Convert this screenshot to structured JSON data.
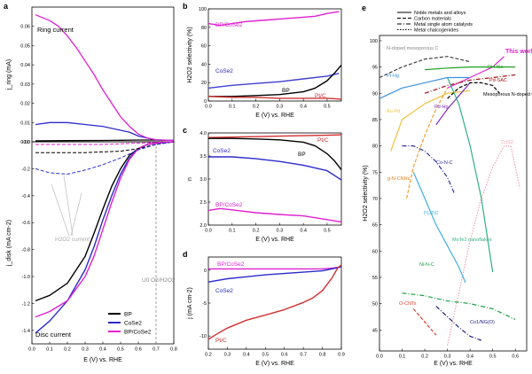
{
  "chart_data": [
    {
      "panel": "a",
      "type": "line",
      "title": "a",
      "top": {
        "ylabel": "j_ring (mA)",
        "annotation": "Ring current",
        "xlim": [
          0,
          0.8
        ],
        "ylim": [
          0,
          0.07
        ],
        "yticks": [
          "0.00",
          "0.01",
          "0.02",
          "0.03",
          "0.04",
          "0.05",
          "0.06"
        ],
        "series": [
          {
            "name": "BP",
            "color": "#000000",
            "style": "solid",
            "x": [
              0.02,
              0.2,
              0.4,
              0.5,
              0.6,
              0.68,
              0.75,
              0.8
            ],
            "y": [
              0.0005,
              0.0006,
              0.0007,
              0.0008,
              0.0009,
              0.0009,
              0.0008,
              0.0007
            ]
          },
          {
            "name": "CoSe2",
            "color": "#2b2bcc",
            "style": "solid",
            "x": [
              0.02,
              0.1,
              0.2,
              0.3,
              0.4,
              0.5,
              0.55,
              0.6,
              0.65,
              0.7,
              0.8
            ],
            "y": [
              0.009,
              0.01,
              0.01,
              0.009,
              0.008,
              0.006,
              0.005,
              0.003,
              0.002,
              0.001,
              0.0007
            ]
          },
          {
            "name": "BP/CoSe2",
            "color": "#e020d0",
            "style": "solid",
            "x": [
              0.02,
              0.1,
              0.15,
              0.2,
              0.25,
              0.3,
              0.35,
              0.4,
              0.45,
              0.5,
              0.55,
              0.6,
              0.65,
              0.7,
              0.8
            ],
            "y": [
              0.066,
              0.063,
              0.06,
              0.055,
              0.049,
              0.042,
              0.035,
              0.027,
              0.02,
              0.013,
              0.008,
              0.004,
              0.002,
              0.001,
              0.0007
            ]
          }
        ]
      },
      "bottom": {
        "ylabel": "j_disk (mA cm-2)",
        "xlabel": "E (V) vs. RHE",
        "annotation": "Disc current",
        "annotation2": "H2O2 current",
        "annotation3": "U0 O2/H2O2",
        "xlim": [
          0,
          0.8
        ],
        "ylim": [
          -1.5,
          0
        ],
        "xticks": [
          "0.0",
          "0.1",
          "0.2",
          "0.3",
          "0.4",
          "0.5",
          "0.6",
          "0.7",
          "0.8"
        ],
        "yticks": [
          "-0.0",
          "-0.2",
          "-0.4",
          "-0.6",
          "-0.8",
          "-1.0",
          "-1.2",
          "-1.4"
        ],
        "series": [
          {
            "name": "BP",
            "color": "#000000",
            "style": "solid",
            "x": [
              0.02,
              0.1,
              0.2,
              0.3,
              0.35,
              0.4,
              0.45,
              0.5,
              0.55,
              0.6,
              0.65,
              0.7,
              0.8
            ],
            "y": [
              -1.18,
              -1.14,
              -1.05,
              -0.85,
              -0.68,
              -0.5,
              -0.33,
              -0.2,
              -0.1,
              -0.05,
              -0.02,
              -0.01,
              0.0
            ]
          },
          {
            "name": "CoSe2",
            "color": "#2b2bcc",
            "style": "solid",
            "x": [
              0.02,
              0.1,
              0.2,
              0.3,
              0.35,
              0.4,
              0.45,
              0.5,
              0.55,
              0.6,
              0.65,
              0.7,
              0.8
            ],
            "y": [
              -1.42,
              -1.33,
              -1.18,
              -0.95,
              -0.78,
              -0.58,
              -0.4,
              -0.24,
              -0.12,
              -0.05,
              -0.02,
              -0.01,
              0.0
            ]
          },
          {
            "name": "BP/CoSe2",
            "color": "#e020d0",
            "style": "solid",
            "x": [
              0.02,
              0.1,
              0.2,
              0.3,
              0.35,
              0.4,
              0.45,
              0.5,
              0.55,
              0.6,
              0.65,
              0.7,
              0.8
            ],
            "y": [
              -1.3,
              -1.26,
              -1.18,
              -1.0,
              -0.85,
              -0.65,
              -0.45,
              -0.27,
              -0.13,
              -0.05,
              -0.02,
              -0.01,
              0.0
            ]
          },
          {
            "name": "BP H2O2",
            "color": "#000000",
            "style": "dashed",
            "x": [
              0.02,
              0.3,
              0.5,
              0.6,
              0.7,
              0.8
            ],
            "y": [
              -0.08,
              -0.08,
              -0.07,
              -0.05,
              -0.02,
              0.0
            ]
          },
          {
            "name": "CoSe2 H2O2",
            "color": "#2b2bcc",
            "style": "dashed",
            "x": [
              0.02,
              0.1,
              0.2,
              0.3,
              0.4,
              0.5,
              0.6,
              0.7,
              0.8
            ],
            "y": [
              -0.2,
              -0.23,
              -0.24,
              -0.21,
              -0.17,
              -0.12,
              -0.06,
              -0.02,
              0.0
            ]
          },
          {
            "name": "BP/CoSe2 H2O2",
            "color": "#e020d0",
            "style": "dashed",
            "x": [
              0.02,
              0.2,
              0.4,
              0.6,
              0.8
            ],
            "y": [
              -0.02,
              -0.02,
              -0.02,
              -0.01,
              0.0
            ]
          }
        ],
        "legend": [
          {
            "label": "BP",
            "color": "#000000"
          },
          {
            "label": "CoSe2",
            "color": "#2b2bcc"
          },
          {
            "label": "BP/CoSe2",
            "color": "#e020d0"
          }
        ],
        "legend_position": "bottom-right"
      }
    },
    {
      "panel": "b",
      "type": "line",
      "title": "b",
      "ylabel": "H2O2 selectivity (%)",
      "xlabel": "E (V) vs. RHE",
      "xlim": [
        0,
        0.56
      ],
      "ylim": [
        0,
        100
      ],
      "xticks": [
        "0.0",
        "0.1",
        "0.2",
        "0.3",
        "0.4",
        "0.5"
      ],
      "yticks": [
        "0",
        "20",
        "40",
        "60",
        "80",
        "100"
      ],
      "series": [
        {
          "name": "BP/CoSe2",
          "color": "#e020d0",
          "x": [
            0.0,
            0.05,
            0.1,
            0.15,
            0.2,
            0.25,
            0.3,
            0.35,
            0.4,
            0.45,
            0.5,
            0.55
          ],
          "y": [
            84,
            82,
            84,
            86,
            87,
            88,
            89,
            90,
            91,
            92,
            95,
            97
          ]
        },
        {
          "name": "CoSe2",
          "color": "#4040d0",
          "x": [
            0.0,
            0.1,
            0.2,
            0.3,
            0.4,
            0.5,
            0.55
          ],
          "y": [
            14,
            17,
            19,
            21,
            24,
            27,
            30
          ]
        },
        {
          "name": "BP",
          "color": "#000000",
          "x": [
            0.0,
            0.1,
            0.2,
            0.3,
            0.4,
            0.45,
            0.5,
            0.53,
            0.56
          ],
          "y": [
            5,
            5,
            6,
            7,
            10,
            14,
            22,
            30,
            39
          ]
        },
        {
          "name": "Pt/C",
          "color": "#d03030",
          "x": [
            0.0,
            0.1,
            0.2,
            0.3,
            0.4,
            0.5,
            0.56
          ],
          "y": [
            5,
            4,
            4,
            3,
            3,
            3,
            2
          ]
        }
      ],
      "labels": [
        "BP/CoSe2",
        "CoSe2",
        "BP",
        "Pt/C"
      ]
    },
    {
      "panel": "c",
      "type": "line",
      "title": "c",
      "ylabel": "n",
      "xlabel": "E (V) vs. RHE",
      "xlim": [
        0,
        0.56
      ],
      "ylim": [
        2.0,
        4.0
      ],
      "xticks": [
        "0.0",
        "0.1",
        "0.2",
        "0.3",
        "0.4",
        "0.5"
      ],
      "yticks": [
        "2.0",
        "2.5",
        "3.0",
        "3.5",
        "4.0"
      ],
      "series": [
        {
          "name": "Pt/C",
          "color": "#d03030",
          "x": [
            0.0,
            0.1,
            0.2,
            0.3,
            0.4,
            0.5,
            0.56
          ],
          "y": [
            3.9,
            3.91,
            3.92,
            3.93,
            3.94,
            3.95,
            3.96
          ]
        },
        {
          "name": "BP",
          "color": "#000000",
          "x": [
            0.0,
            0.1,
            0.2,
            0.3,
            0.4,
            0.45,
            0.5,
            0.53,
            0.56
          ],
          "y": [
            3.88,
            3.88,
            3.87,
            3.85,
            3.8,
            3.72,
            3.55,
            3.4,
            3.2
          ]
        },
        {
          "name": "CoSe2",
          "color": "#2b2bcc",
          "x": [
            0.0,
            0.1,
            0.2,
            0.3,
            0.4,
            0.5,
            0.56
          ],
          "y": [
            3.48,
            3.48,
            3.44,
            3.38,
            3.3,
            3.18,
            2.98
          ]
        },
        {
          "name": "BP/CoSe2",
          "color": "#e020d0",
          "x": [
            0.0,
            0.05,
            0.1,
            0.2,
            0.3,
            0.4,
            0.5,
            0.56
          ],
          "y": [
            2.32,
            2.36,
            2.33,
            2.27,
            2.23,
            2.2,
            2.12,
            2.07
          ]
        }
      ],
      "labels": [
        "Pt/C",
        "CoSe2",
        "BP",
        "BP/CoSe2"
      ]
    },
    {
      "panel": "d",
      "type": "line",
      "title": "d",
      "ylabel": "j (mA cm-2)",
      "xlabel": "E (V) vs. RHE",
      "xlim": [
        0.2,
        0.9
      ],
      "ylim": [
        -12,
        2
      ],
      "xticks": [
        "0.2",
        "0.3",
        "0.4",
        "0.5",
        "0.6",
        "0.7",
        "0.8",
        "0.9"
      ],
      "yticks": [
        "0",
        "-5",
        "-10"
      ],
      "series": [
        {
          "name": "BP/CoSe2",
          "color": "#e020d0",
          "x": [
            0.2,
            0.3,
            0.4,
            0.5,
            0.6,
            0.7,
            0.8,
            0.85,
            0.9
          ],
          "y": [
            0.2,
            0.2,
            0.2,
            0.2,
            0.2,
            0.2,
            0.2,
            0.3,
            0.5
          ]
        },
        {
          "name": "CoSe2",
          "color": "#2b2bcc",
          "x": [
            0.2,
            0.3,
            0.4,
            0.5,
            0.6,
            0.7,
            0.8,
            0.85,
            0.9
          ],
          "y": [
            -1.8,
            -1.3,
            -1.0,
            -0.7,
            -0.5,
            -0.3,
            -0.1,
            0.2,
            0.5
          ]
        },
        {
          "name": "Pt/C",
          "color": "#d03030",
          "x": [
            0.2,
            0.25,
            0.3,
            0.4,
            0.5,
            0.6,
            0.7,
            0.75,
            0.8,
            0.85,
            0.88,
            0.9
          ],
          "y": [
            -10.5,
            -9.6,
            -8.8,
            -7.6,
            -6.8,
            -6.0,
            -4.9,
            -4.2,
            -3.1,
            -1.2,
            0.3,
            0.8
          ]
        }
      ],
      "labels": [
        "BP/CoSe2",
        "CoSe2",
        "Pt/C"
      ]
    },
    {
      "panel": "e",
      "type": "line",
      "title": "e",
      "ylabel": "H2O2 selectivity (%)",
      "xlabel": "E (V) vs. RHE",
      "xlim": [
        0,
        0.65
      ],
      "ylim": [
        41,
        101
      ],
      "xticks": [
        "0.0",
        "0.1",
        "0.2",
        "0.3",
        "0.4",
        "0.5",
        "0.6"
      ],
      "yticks": [
        "45",
        "50",
        "55",
        "60",
        "65",
        "70",
        "75",
        "80",
        "85",
        "90",
        "95",
        "100"
      ],
      "legend": [
        {
          "label": "Noble metals and alloys",
          "style": "solid"
        },
        {
          "label": "Carbon materials",
          "style": "dashed"
        },
        {
          "label": "Metal single atom catalysts",
          "style": "dashdot"
        },
        {
          "label": "Metal chalcogenides",
          "style": "dotted"
        }
      ],
      "series": [
        {
          "name": "This work",
          "color": "#e020d0",
          "style": "solid",
          "x": [
            0.3,
            0.35,
            0.4,
            0.45,
            0.5,
            0.55
          ],
          "y": [
            91,
            92,
            93,
            94,
            95,
            97
          ]
        },
        {
          "name": "Pt-HSc",
          "color": "#20a020",
          "style": "solid",
          "x": [
            0.2,
            0.3,
            0.4,
            0.5,
            0.6
          ],
          "y": [
            94.5,
            94.8,
            95,
            95,
            95
          ]
        },
        {
          "name": "Pd-SAC",
          "color": "#a01010",
          "style": "dashdot",
          "x": [
            0.2,
            0.3,
            0.4,
            0.5,
            0.6
          ],
          "y": [
            90,
            91.5,
            92.5,
            93,
            93.5
          ]
        },
        {
          "name": "N-doped mesoporous C",
          "color": "#404040",
          "style": "dashed",
          "x": [
            0.0,
            0.1,
            0.2,
            0.3,
            0.4
          ],
          "y": [
            93,
            95,
            96.5,
            97,
            96
          ]
        },
        {
          "name": "Pt-Hg",
          "color": "#4090e0",
          "style": "solid",
          "x": [
            0.0,
            0.1,
            0.2,
            0.3,
            0.4
          ],
          "y": [
            89,
            91,
            92,
            93,
            93
          ]
        },
        {
          "name": "Au-Pd",
          "color": "#f0c040",
          "style": "solid",
          "x": [
            0.05,
            0.1,
            0.2,
            0.3,
            0.4
          ],
          "y": [
            79,
            85,
            88,
            90,
            90.5
          ]
        },
        {
          "name": "Pd-Hg",
          "color": "#8030c0",
          "style": "solid",
          "x": [
            0.25,
            0.3,
            0.35,
            0.4
          ],
          "y": [
            84,
            87,
            89.5,
            92
          ]
        },
        {
          "name": "Mesoporous N-doped C",
          "color": "#000000",
          "style": "dashed",
          "x": [
            0.3,
            0.35,
            0.4,
            0.45,
            0.5,
            0.53
          ],
          "y": [
            89,
            91,
            92,
            92,
            91.5,
            90
          ]
        },
        {
          "name": "g-N-CNHs",
          "color": "#f0a030",
          "style": "dashed",
          "x": [
            0.12,
            0.15,
            0.2,
            0.25,
            0.3
          ],
          "y": [
            70,
            76,
            82,
            87,
            91
          ]
        },
        {
          "name": "Co-N-C",
          "color": "#3030a0",
          "style": "dashdot",
          "x": [
            0.1,
            0.15,
            0.2,
            0.25,
            0.3,
            0.33
          ],
          "y": [
            80,
            80,
            79,
            77,
            74,
            71
          ]
        },
        {
          "name": "CoS2",
          "color": "#f0a0b0",
          "style": "dotted",
          "x": [
            0.3,
            0.35,
            0.4,
            0.45,
            0.5,
            0.55,
            0.58,
            0.62
          ],
          "y": [
            42,
            52,
            62,
            70,
            76,
            80,
            80,
            72
          ]
        },
        {
          "name": "PL/TiC",
          "color": "#40b0e0",
          "style": "solid",
          "x": [
            0.15,
            0.2,
            0.25,
            0.3,
            0.35,
            0.38
          ],
          "y": [
            75,
            70,
            65,
            61,
            57,
            54
          ]
        },
        {
          "name": "MoTe2 nanoflakes",
          "color": "#30b080",
          "style": "solid",
          "x": [
            0.3,
            0.35,
            0.4,
            0.45,
            0.5
          ],
          "y": [
            93,
            88,
            80,
            70,
            56
          ]
        },
        {
          "name": "Ni-N-C",
          "color": "#20a040",
          "style": "dashdot",
          "x": [
            0.1,
            0.2,
            0.3,
            0.4,
            0.5,
            0.6
          ],
          "y": [
            52,
            51.5,
            50.5,
            50,
            49,
            47
          ]
        },
        {
          "name": "O-CNTs",
          "color": "#e04030",
          "style": "dashed",
          "x": [
            0.15,
            0.18,
            0.21,
            0.25
          ],
          "y": [
            49,
            47.5,
            46,
            44
          ]
        },
        {
          "name": "Co1/NG(O)",
          "color": "#202080",
          "style": "dashdot",
          "x": [
            0.25,
            0.3,
            0.35,
            0.4,
            0.45
          ],
          "y": [
            49.5,
            47.5,
            45.5,
            43.8,
            43
          ]
        }
      ]
    }
  ]
}
